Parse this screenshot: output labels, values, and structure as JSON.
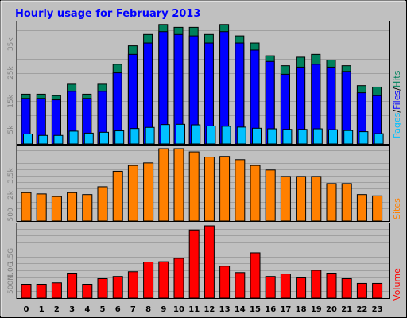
{
  "title": "Hourly usage for February 2013",
  "hours": [
    "0",
    "1",
    "2",
    "3",
    "4",
    "5",
    "6",
    "7",
    "8",
    "9",
    "10",
    "11",
    "12",
    "13",
    "14",
    "15",
    "16",
    "17",
    "18",
    "19",
    "20",
    "21",
    "22",
    "23"
  ],
  "panels": {
    "top": {
      "y_ticks": [
        "5k",
        "15k",
        "25k",
        "35k"
      ],
      "legend": {
        "pages": "Pages",
        "files": "Files",
        "hits": "Hits",
        "sep": "/"
      }
    },
    "middle": {
      "y_ticks": [
        "500",
        "2k",
        "3.5k"
      ],
      "legend": "Sites"
    },
    "bottom": {
      "y_ticks": [
        "500M",
        "1.0G",
        "1.5G"
      ],
      "legend": "Volume"
    }
  },
  "colors": {
    "background": "#c0c0c0",
    "title": "#0000ff",
    "hits": "#00805c",
    "files": "#0000ff",
    "pages": "#00c0ff",
    "sites": "#ff8000",
    "volume": "#ff0000",
    "tick_text": "#808080"
  },
  "chart_data": [
    {
      "type": "bar",
      "title": "Hourly usage for February 2013",
      "categories": [
        "0",
        "1",
        "2",
        "3",
        "4",
        "5",
        "6",
        "7",
        "8",
        "9",
        "10",
        "11",
        "12",
        "13",
        "14",
        "15",
        "16",
        "17",
        "18",
        "19",
        "20",
        "21",
        "22",
        "23"
      ],
      "series": [
        {
          "name": "Hits",
          "values": [
            17500,
            17500,
            17000,
            21000,
            17500,
            21000,
            28000,
            34500,
            38500,
            42000,
            41000,
            41000,
            38500,
            42000,
            38000,
            35500,
            31000,
            27500,
            30500,
            31500,
            29500,
            27500,
            20500,
            20000
          ]
        },
        {
          "name": "Files",
          "values": [
            16000,
            16000,
            15500,
            18500,
            16000,
            18500,
            25000,
            31500,
            35500,
            39500,
            38500,
            38000,
            35500,
            39500,
            35500,
            33000,
            29000,
            24500,
            27000,
            28000,
            27000,
            25500,
            18000,
            17000
          ]
        },
        {
          "name": "Pages",
          "values": [
            3500,
            3000,
            3000,
            4500,
            3800,
            4100,
            4600,
            5400,
            5800,
            6800,
            6900,
            6700,
            6300,
            6200,
            5900,
            5500,
            5300,
            5100,
            5100,
            5300,
            5000,
            4700,
            4300,
            3600
          ]
        }
      ],
      "ylim": [
        0,
        42500
      ]
    },
    {
      "type": "bar",
      "categories": [
        "0",
        "1",
        "2",
        "3",
        "4",
        "5",
        "6",
        "7",
        "8",
        "9",
        "10",
        "11",
        "12",
        "13",
        "14",
        "15",
        "16",
        "17",
        "18",
        "19",
        "20",
        "21",
        "22",
        "23"
      ],
      "series": [
        {
          "name": "Sites",
          "values": [
            2200,
            2100,
            1900,
            2200,
            2050,
            2650,
            3850,
            4300,
            4500,
            5600,
            5600,
            5350,
            4950,
            5000,
            4750,
            4300,
            3950,
            3450,
            3450,
            3450,
            2900,
            2900,
            2050,
            1950
          ]
        }
      ],
      "ylim": [
        0,
        5600
      ]
    },
    {
      "type": "bar",
      "categories": [
        "0",
        "1",
        "2",
        "3",
        "4",
        "5",
        "6",
        "7",
        "8",
        "9",
        "10",
        "11",
        "12",
        "13",
        "14",
        "15",
        "16",
        "17",
        "18",
        "19",
        "20",
        "21",
        "22",
        "23"
      ],
      "series": [
        {
          "name": "Volume",
          "values": [
            500,
            500,
            550,
            900,
            500,
            700,
            780,
            950,
            1300,
            1310,
            1430,
            2450,
            2600,
            1150,
            920,
            1630,
            780,
            870,
            730,
            1000,
            900,
            700,
            530,
            530
          ]
        }
      ],
      "ylim": [
        0,
        2600
      ]
    }
  ]
}
